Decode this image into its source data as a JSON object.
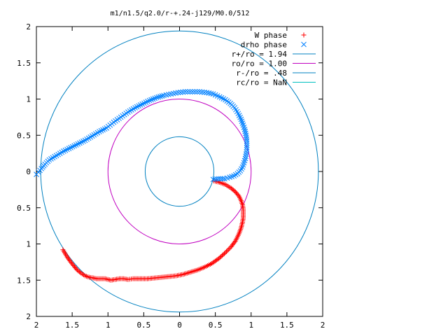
{
  "chart_data": {
    "type": "scatter",
    "title": "m1/n1.5/q2.0/r-+.24-j129/M0.0/512",
    "xlabel": "",
    "ylabel": "",
    "xlim": [
      -2,
      2
    ],
    "ylim": [
      -2,
      2
    ],
    "grid": false,
    "legend_position": "top-right",
    "x_ticks": [
      {
        "value": -2,
        "label": "2"
      },
      {
        "value": -1.5,
        "label": "1.5"
      },
      {
        "value": -1,
        "label": "1"
      },
      {
        "value": -0.5,
        "label": "0.5"
      },
      {
        "value": 0,
        "label": "0"
      },
      {
        "value": 0.5,
        "label": "0.5"
      },
      {
        "value": 1,
        "label": "1"
      },
      {
        "value": 1.5,
        "label": "1.5"
      },
      {
        "value": 2,
        "label": "2"
      }
    ],
    "y_ticks": [
      {
        "value": 2,
        "label": "2"
      },
      {
        "value": 1.5,
        "label": "1.5"
      },
      {
        "value": 1,
        "label": "1"
      },
      {
        "value": 0.5,
        "label": "0.5"
      },
      {
        "value": 0,
        "label": "0"
      },
      {
        "value": -0.5,
        "label": "0.5"
      },
      {
        "value": -1,
        "label": "1"
      },
      {
        "value": -1.5,
        "label": "1.5"
      },
      {
        "value": -2,
        "label": "2"
      }
    ],
    "series": [
      {
        "name": "W phase",
        "kind": "points",
        "marker": "plus",
        "color": "#ff0000",
        "points": [
          [
            0.48,
            -0.13
          ],
          [
            0.56,
            -0.15
          ],
          [
            0.64,
            -0.18
          ],
          [
            0.72,
            -0.23
          ],
          [
            0.78,
            -0.28
          ],
          [
            0.83,
            -0.34
          ],
          [
            0.86,
            -0.4
          ],
          [
            0.88,
            -0.46
          ],
          [
            0.89,
            -0.52
          ],
          [
            0.89,
            -0.58
          ],
          [
            0.89,
            -0.64
          ],
          [
            0.88,
            -0.7
          ],
          [
            0.86,
            -0.78
          ],
          [
            0.83,
            -0.86
          ],
          [
            0.78,
            -0.96
          ],
          [
            0.72,
            -1.04
          ],
          [
            0.64,
            -1.12
          ],
          [
            0.55,
            -1.2
          ],
          [
            0.45,
            -1.27
          ],
          [
            0.35,
            -1.32
          ],
          [
            0.25,
            -1.36
          ],
          [
            0.15,
            -1.39
          ],
          [
            0.05,
            -1.42
          ],
          [
            -0.05,
            -1.44
          ],
          [
            -0.15,
            -1.45
          ],
          [
            -0.25,
            -1.46
          ],
          [
            -0.35,
            -1.47
          ],
          [
            -0.45,
            -1.48
          ],
          [
            -0.55,
            -1.48
          ],
          [
            -0.65,
            -1.48
          ],
          [
            -0.72,
            -1.49
          ],
          [
            -0.78,
            -1.48
          ],
          [
            -0.84,
            -1.48
          ],
          [
            -0.9,
            -1.49
          ],
          [
            -0.96,
            -1.5
          ],
          [
            -1.0,
            -1.49
          ],
          [
            -1.04,
            -1.48
          ],
          [
            -1.08,
            -1.48
          ],
          [
            -1.12,
            -1.48
          ],
          [
            -1.16,
            -1.48
          ],
          [
            -1.2,
            -1.47
          ],
          [
            -1.26,
            -1.46
          ],
          [
            -1.32,
            -1.44
          ],
          [
            -1.38,
            -1.4
          ],
          [
            -1.43,
            -1.36
          ],
          [
            -1.48,
            -1.3
          ],
          [
            -1.52,
            -1.25
          ],
          [
            -1.57,
            -1.18
          ],
          [
            -1.63,
            -1.08
          ]
        ]
      },
      {
        "name": "drho phase",
        "kind": "points",
        "marker": "cross",
        "color": "#0080ff",
        "points": [
          [
            0.47,
            -0.11
          ],
          [
            0.55,
            -0.1
          ],
          [
            0.63,
            -0.1
          ],
          [
            0.7,
            -0.08
          ],
          [
            0.76,
            -0.06
          ],
          [
            0.81,
            -0.03
          ],
          [
            0.85,
            0.01
          ],
          [
            0.88,
            0.06
          ],
          [
            0.9,
            0.12
          ],
          [
            0.92,
            0.18
          ],
          [
            0.93,
            0.24
          ],
          [
            0.94,
            0.3
          ],
          [
            0.94,
            0.36
          ],
          [
            0.94,
            0.42
          ],
          [
            0.93,
            0.5
          ],
          [
            0.91,
            0.58
          ],
          [
            0.89,
            0.64
          ],
          [
            0.86,
            0.72
          ],
          [
            0.82,
            0.8
          ],
          [
            0.77,
            0.88
          ],
          [
            0.71,
            0.94
          ],
          [
            0.64,
            0.99
          ],
          [
            0.56,
            1.03
          ],
          [
            0.47,
            1.07
          ],
          [
            0.38,
            1.09
          ],
          [
            0.28,
            1.1
          ],
          [
            0.18,
            1.1
          ],
          [
            0.08,
            1.1
          ],
          [
            -0.02,
            1.09
          ],
          [
            -0.12,
            1.07
          ],
          [
            -0.22,
            1.05
          ],
          [
            -0.32,
            1.02
          ],
          [
            -0.42,
            0.98
          ],
          [
            -0.52,
            0.93
          ],
          [
            -0.62,
            0.88
          ],
          [
            -0.72,
            0.82
          ],
          [
            -0.82,
            0.75
          ],
          [
            -0.92,
            0.68
          ],
          [
            -1.02,
            0.6
          ],
          [
            -1.12,
            0.55
          ],
          [
            -1.22,
            0.49
          ],
          [
            -1.32,
            0.43
          ],
          [
            -1.42,
            0.38
          ],
          [
            -1.52,
            0.33
          ],
          [
            -1.62,
            0.28
          ],
          [
            -1.72,
            0.22
          ],
          [
            -1.82,
            0.16
          ],
          [
            -1.88,
            0.1
          ],
          [
            -1.93,
            0.04
          ],
          [
            -1.97,
            -0.01
          ],
          [
            -2.0,
            -0.04
          ]
        ]
      },
      {
        "name": "r+/ro = 1.94",
        "kind": "circle",
        "radius": 1.94,
        "color": "#0080c0"
      },
      {
        "name": "ro/ro = 1.00",
        "kind": "circle",
        "radius": 1.0,
        "color": "#c000c0"
      },
      {
        "name": "r-/ro = .48",
        "kind": "circle",
        "radius": 0.48,
        "color": "#0080c0"
      },
      {
        "name": "rc/ro = NaN",
        "kind": "circle",
        "radius": null,
        "color": "#00c0c0"
      }
    ],
    "legend_labels": [
      "W phase",
      "drho phase",
      "r+/ro = 1.94",
      "ro/ro = 1.00",
      "r-/ro = .48",
      "rc/ro = NaN"
    ]
  }
}
